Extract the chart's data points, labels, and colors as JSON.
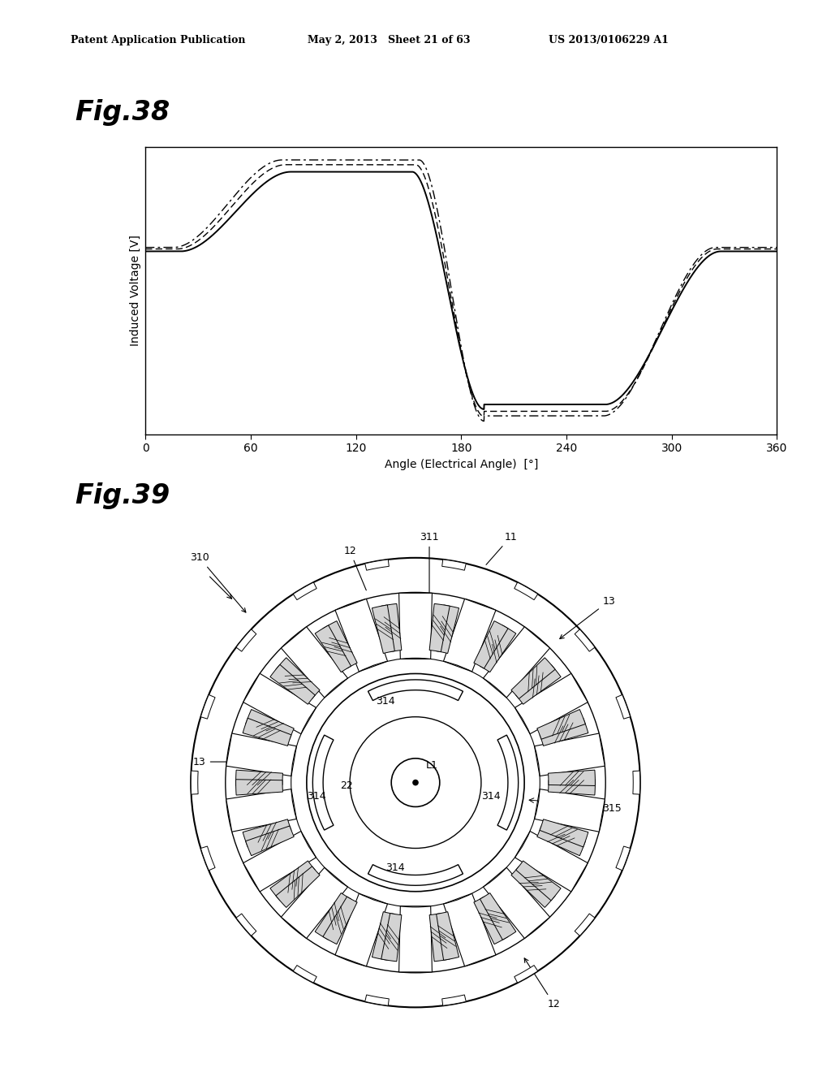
{
  "header_left": "Patent Application Publication",
  "header_mid": "May 2, 2013   Sheet 21 of 63",
  "header_right": "US 2013/0106229 A1",
  "fig38_label": "Fig.38",
  "fig39_label": "Fig.39",
  "xlabel": "Angle (Electrical Angle)  [°]",
  "ylabel": "Induced Voltage [V]",
  "xticks": [
    0,
    60,
    120,
    180,
    240,
    300,
    360
  ],
  "background_color": "#ffffff",
  "line_color": "#000000",
  "outer_r": 1.3,
  "stator_yoke_r": 1.1,
  "stator_inner_r": 0.72,
  "rotor_outer_r": 0.63,
  "rotor_flux_r": 0.38,
  "shaft_r": 0.14,
  "n_stator_teeth": 18,
  "n_rotor_poles": 4
}
